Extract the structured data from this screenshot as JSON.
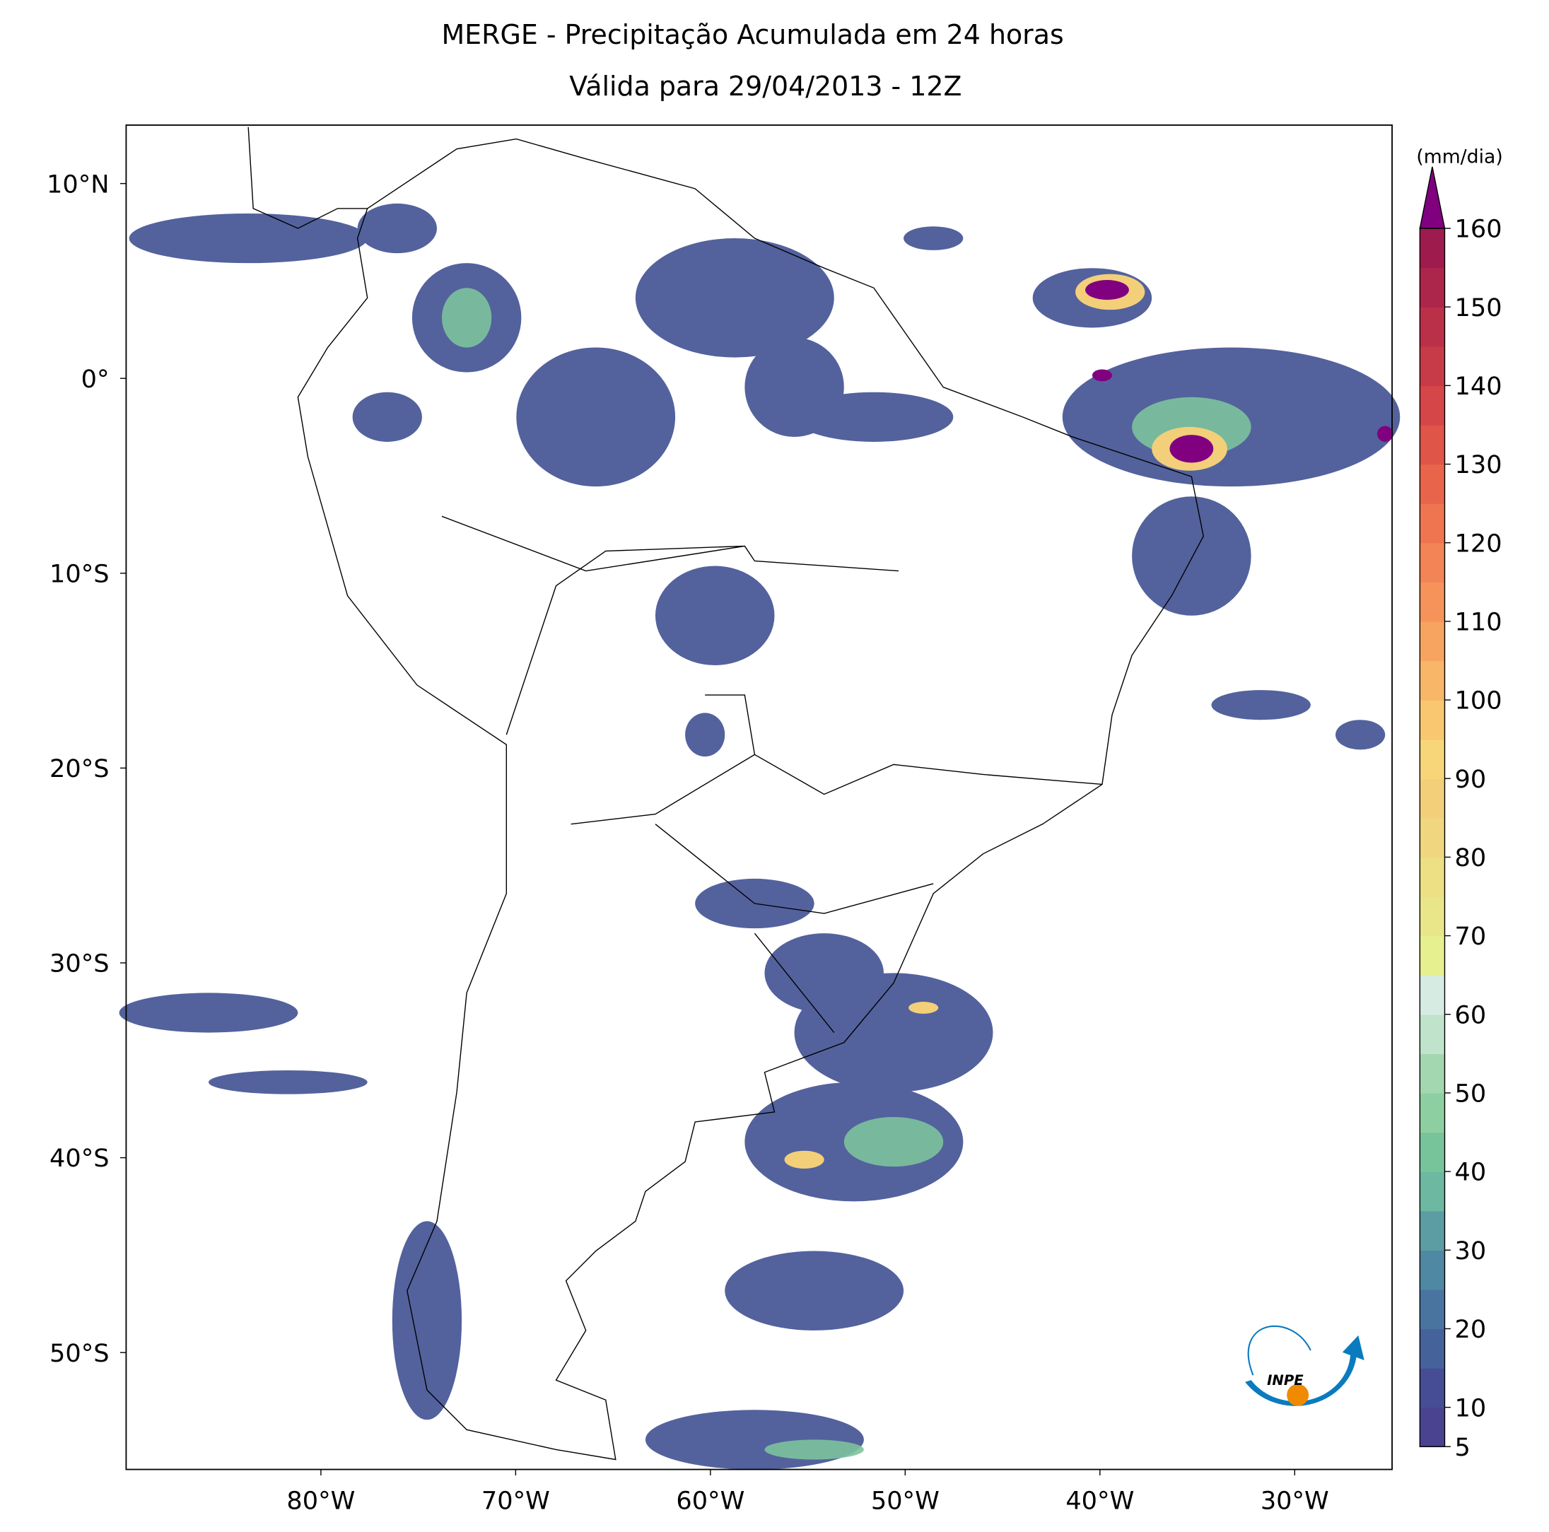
{
  "title": "MERGE - Precipitação Acumulada em 24 horas",
  "subtitle": "Válida para 29/04/2013 - 12Z",
  "map": {
    "lon_range": [
      -90,
      -25
    ],
    "lat_range": [
      -56,
      13
    ],
    "lon_ticks": [
      {
        "value": -80,
        "label": "80°W"
      },
      {
        "value": -70,
        "label": "70°W"
      },
      {
        "value": -60,
        "label": "60°W"
      },
      {
        "value": -50,
        "label": "50°W"
      },
      {
        "value": -40,
        "label": "40°W"
      },
      {
        "value": -30,
        "label": "30°W"
      }
    ],
    "lat_ticks": [
      {
        "value": 10,
        "label": "10°N"
      },
      {
        "value": 0,
        "label": "0°"
      },
      {
        "value": -10,
        "label": "10°S"
      },
      {
        "value": -20,
        "label": "20°S"
      },
      {
        "value": -30,
        "label": "30°S"
      },
      {
        "value": -40,
        "label": "40°S"
      },
      {
        "value": -50,
        "label": "50°S"
      }
    ]
  },
  "colorbar": {
    "unit": "(mm/dia)",
    "range": [
      5,
      160
    ],
    "step": 5,
    "extend_color": "#800080",
    "ticks": [
      5,
      10,
      20,
      30,
      40,
      50,
      60,
      70,
      80,
      90,
      100,
      110,
      120,
      130,
      140,
      150,
      160
    ],
    "colors": [
      "#4a4390",
      "#464d94",
      "#46629a",
      "#4a74a0",
      "#4f88a3",
      "#5c9ca3",
      "#6db8a0",
      "#78c49a",
      "#8ecfa1",
      "#a3d7b0",
      "#bfe3cb",
      "#d6ece2",
      "#e6f08e",
      "#e8e689",
      "#ecdf84",
      "#f0d77f",
      "#f3cf7a",
      "#f7d67a",
      "#f8c770",
      "#f7b668",
      "#f6a460",
      "#f5935a",
      "#f28456",
      "#ee7550",
      "#e8654b",
      "#df5548",
      "#d44647",
      "#c73b48",
      "#ba3049",
      "#ac264b",
      "#9e1c4d"
    ]
  },
  "logo": "INPE"
}
